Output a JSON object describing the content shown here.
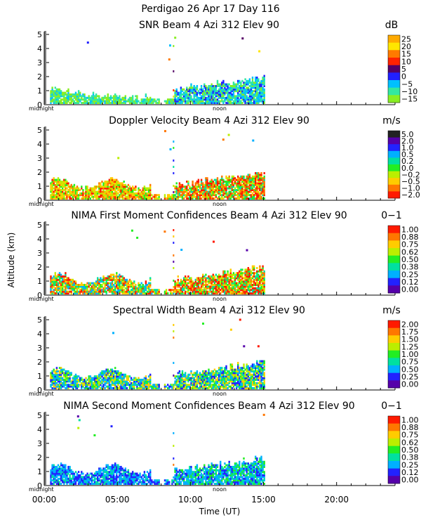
{
  "header": {
    "title": "Perdigao  26 Apr 17 Day 116"
  },
  "axes": {
    "ylabel": "Altitude (km)",
    "xlabel": "Time (UT)",
    "xticks": [
      "00:00",
      "05:00",
      "10:00",
      "15:00",
      "20:00"
    ],
    "xtick_hours": [
      0,
      5,
      10,
      15,
      20
    ],
    "xlim_hours": [
      0,
      24
    ],
    "ylim_km": [
      0,
      5.2
    ],
    "midnight_label": "midnight",
    "noon_label": "noon"
  },
  "chart_data": [
    {
      "type": "heatmap",
      "title": "SNR Beam 4 Azi 312 Elev 90",
      "unit": "dB",
      "yticks": [
        "0",
        "1",
        "2",
        "3",
        "4",
        "5"
      ],
      "colorbar": {
        "labels": [
          "25",
          "20",
          "15",
          "10",
          "5",
          "0",
          "−5",
          "−10",
          "−15"
        ],
        "colors": [
          "#ffaa00",
          "#ffe600",
          "#ff7a00",
          "#ff2200",
          "#550066",
          "#2020ff",
          "#00c0ff",
          "#33e8a0",
          "#88ee22"
        ]
      }
    },
    {
      "type": "heatmap",
      "title": "Doppler Velocity Beam 4 Azi 312 Elev 90",
      "unit": "m/s",
      "yticks": [
        "0",
        "1",
        "2",
        "3",
        "4",
        "5"
      ],
      "colorbar": {
        "labels": [
          "5.0",
          "2.0",
          "1.0",
          "0.5",
          "0.2",
          "0.0",
          "−0.2",
          "−0.5",
          "−1.0",
          "−2.0"
        ],
        "colors": [
          "#222222",
          "#5500aa",
          "#2222ff",
          "#00b0ff",
          "#00e0a0",
          "#22ee22",
          "#bbee00",
          "#ffcc00",
          "#ff7700",
          "#ff1a00"
        ]
      }
    },
    {
      "type": "heatmap",
      "title": "NIMA First Moment Confidences Beam 4 Azi 312 Elev 90",
      "unit": "0−1",
      "yticks": [
        "0",
        "1",
        "2",
        "3",
        "4",
        "5"
      ],
      "colorbar": {
        "labels": [
          "1.00",
          "0.88",
          "0.75",
          "0.62",
          "0.50",
          "0.38",
          "0.25",
          "0.12",
          "0.00"
        ],
        "colors": [
          "#ff1a00",
          "#ff7700",
          "#ffcc00",
          "#bbee00",
          "#22ee22",
          "#00e0a0",
          "#00b0ff",
          "#2222ff",
          "#5500aa"
        ]
      }
    },
    {
      "type": "heatmap",
      "title": "Spectral Width Beam 4 Azi 312 Elev 90",
      "unit": "m/s",
      "yticks": [
        "0",
        "1",
        "2",
        "3",
        "4",
        "5"
      ],
      "colorbar": {
        "labels": [
          "2.00",
          "1.75",
          "1.50",
          "1.25",
          "1.00",
          "0.75",
          "0.50",
          "0.25",
          "0.00"
        ],
        "colors": [
          "#ff1a00",
          "#ff7700",
          "#ffcc00",
          "#bbee00",
          "#22ee22",
          "#00e0a0",
          "#00b0ff",
          "#2222ff",
          "#5500aa"
        ]
      }
    },
    {
      "type": "heatmap",
      "title": "NIMA Second Moment Confidences Beam 4 Azi 312 Elev 90",
      "unit": "0−1",
      "yticks": [
        "0",
        "1",
        "2",
        "3",
        "4",
        "5"
      ],
      "colorbar": {
        "labels": [
          "1.00",
          "0.88",
          "0.75",
          "0.62",
          "0.50",
          "0.38",
          "0.25",
          "0.12",
          "0.00"
        ],
        "colors": [
          "#ff1a00",
          "#ff7700",
          "#ffcc00",
          "#bbee00",
          "#22ee22",
          "#00e0a0",
          "#00b0ff",
          "#2222ff",
          "#5500aa"
        ]
      }
    }
  ]
}
